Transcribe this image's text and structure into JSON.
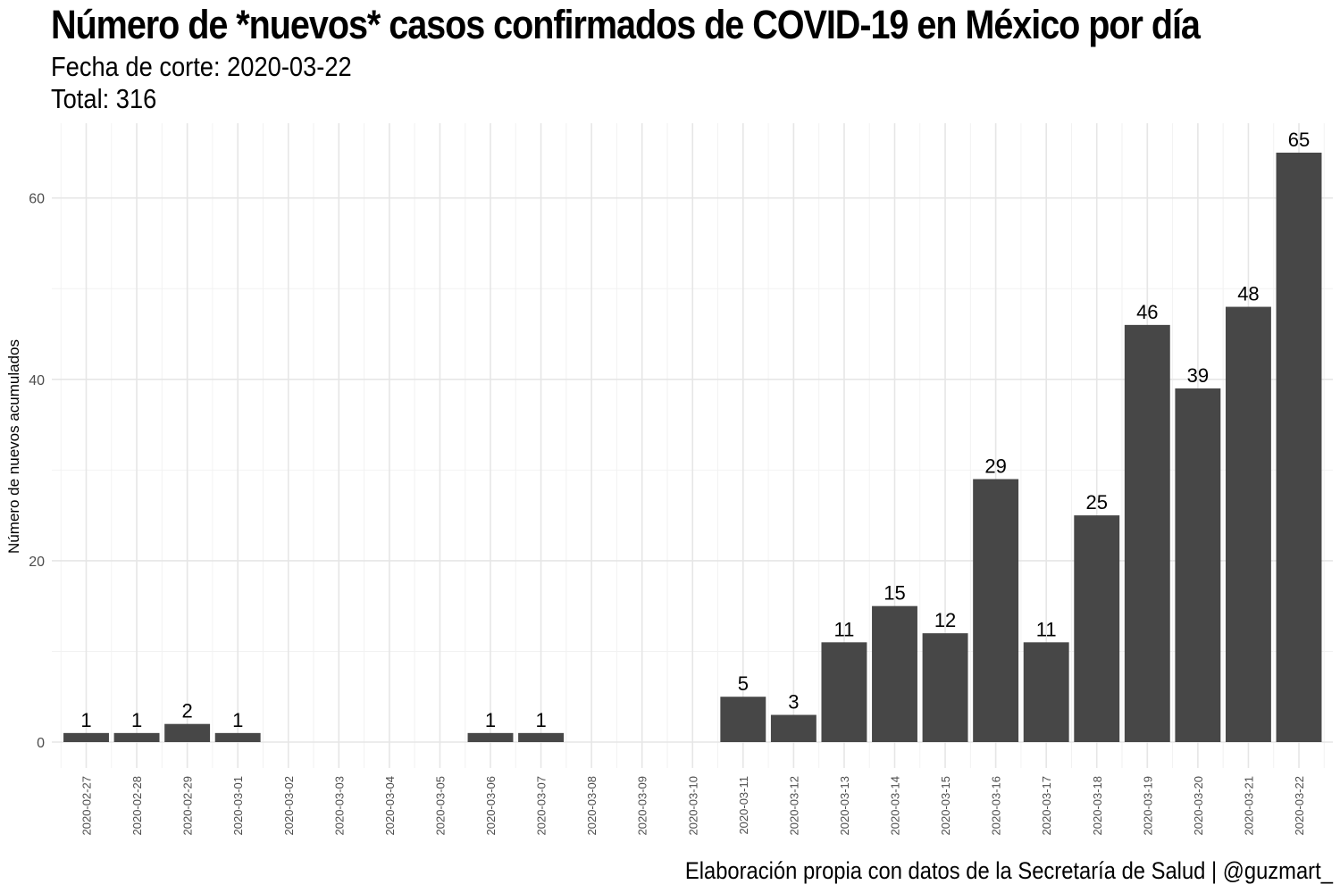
{
  "header": {
    "title": "Número de *nuevos* casos confirmados de COVID-19 en México por día",
    "subtitle_line1": "Fecha de corte: 2020-03-22",
    "subtitle_line2": "Total: 316"
  },
  "caption": "Elaboración propia con datos de la Secretaría de Salud | @guzmart_",
  "colors": {
    "bar": "#474747",
    "grid_major": "#e6e6e6",
    "grid_minor": "#f2f2f2",
    "tick_text": "#4d4d4d"
  },
  "chart_data": {
    "type": "bar",
    "title": "Número de *nuevos* casos confirmados de COVID-19 en México por día",
    "ylabel": "Número de nuevos acumulados",
    "xlabel": "",
    "ylim": [
      -3,
      68
    ],
    "yticks": [
      0,
      20,
      40,
      60
    ],
    "grid": true,
    "legend": "none",
    "categories": [
      "2020-02-27",
      "2020-02-28",
      "2020-02-29",
      "2020-03-01",
      "2020-03-02",
      "2020-03-03",
      "2020-03-04",
      "2020-03-05",
      "2020-03-06",
      "2020-03-07",
      "2020-03-08",
      "2020-03-09",
      "2020-03-10",
      "2020-03-11",
      "2020-03-12",
      "2020-03-13",
      "2020-03-14",
      "2020-03-15",
      "2020-03-16",
      "2020-03-17",
      "2020-03-18",
      "2020-03-19",
      "2020-03-20",
      "2020-03-21",
      "2020-03-22"
    ],
    "values": [
      1,
      1,
      2,
      1,
      null,
      null,
      null,
      null,
      1,
      1,
      null,
      null,
      null,
      5,
      3,
      11,
      15,
      12,
      29,
      11,
      25,
      46,
      39,
      48,
      65
    ]
  }
}
